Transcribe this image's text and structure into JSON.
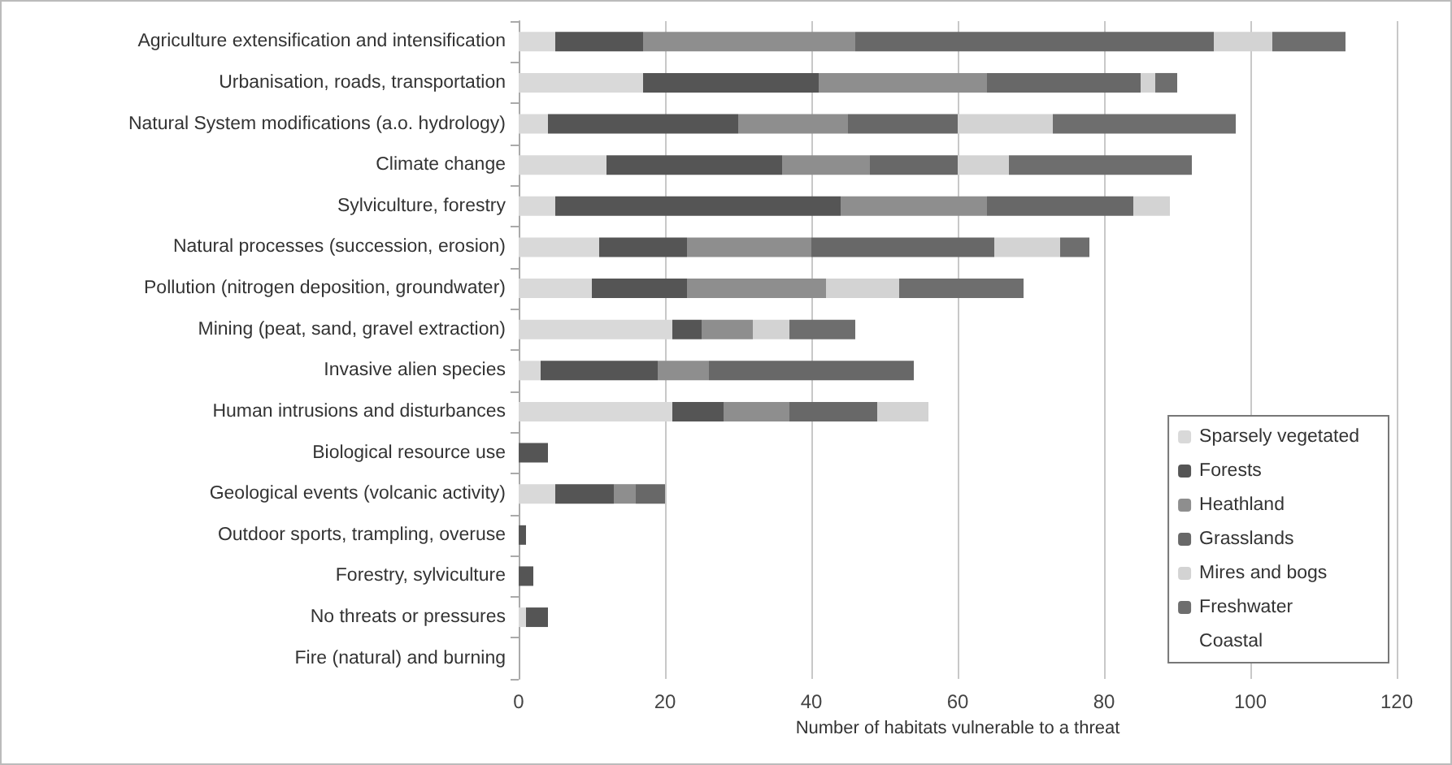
{
  "chart_data": {
    "type": "bar",
    "orientation": "horizontal",
    "stacked": true,
    "xlabel": "Number of habitats vulnerable to a threat",
    "categories": [
      "Agriculture extensification and intensification",
      "Urbanisation, roads, transportation",
      "Natural System modifications (a.o. hydrology)",
      "Climate change",
      "Sylviculture, forestry",
      "Natural processes (succession, erosion)",
      "Pollution (nitrogen deposition, groundwater)",
      "Mining (peat, sand, gravel extraction)",
      "Invasive alien species",
      "Human intrusions and disturbances",
      "Biological resource use",
      "Geological events (volcanic activity)",
      "Outdoor sports, trampling, overuse",
      "Forestry, sylviculture",
      "No threats or pressures",
      "Fire (natural) and burning"
    ],
    "series": [
      {
        "name": "Sparsely vegetated",
        "color": "#d9d9d9",
        "values": [
          5,
          17,
          4,
          12,
          5,
          11,
          10,
          21,
          3,
          21,
          null,
          5,
          null,
          null,
          1,
          null
        ]
      },
      {
        "name": "Forests",
        "color": "#555555",
        "values": [
          12,
          24,
          26,
          24,
          39,
          12,
          13,
          4,
          16,
          7,
          4,
          8,
          1,
          2,
          3,
          null
        ]
      },
      {
        "name": "Heathland",
        "color": "#8e8e8e",
        "values": [
          29,
          23,
          15,
          12,
          20,
          17,
          19,
          7,
          7,
          9,
          null,
          3,
          null,
          null,
          null,
          null
        ]
      },
      {
        "name": "Grasslands",
        "color": "#686868",
        "values": [
          49,
          21,
          15,
          12,
          20,
          25,
          null,
          null,
          28,
          12,
          null,
          4,
          null,
          null,
          null,
          null
        ]
      },
      {
        "name": "Mires and bogs",
        "color": "#d3d3d3",
        "values": [
          8,
          2,
          13,
          7,
          5,
          9,
          10,
          5,
          null,
          7,
          null,
          null,
          null,
          null,
          null,
          null
        ]
      },
      {
        "name": "Freshwater",
        "color": "#6e6e6e",
        "values": [
          10,
          3,
          25,
          25,
          null,
          4,
          17,
          9,
          null,
          null,
          null,
          null,
          null,
          null,
          null,
          null
        ]
      },
      {
        "name": "Coastal",
        "values": [
          null,
          null,
          null,
          null,
          null,
          null,
          null,
          null,
          null,
          null,
          null,
          null,
          null,
          null,
          null,
          null
        ]
      }
    ],
    "xlim": [
      0,
      120
    ],
    "xticks": [
      0,
      20,
      40,
      60,
      80,
      100,
      120
    ],
    "grid": "x",
    "legend": "bottom right"
  }
}
